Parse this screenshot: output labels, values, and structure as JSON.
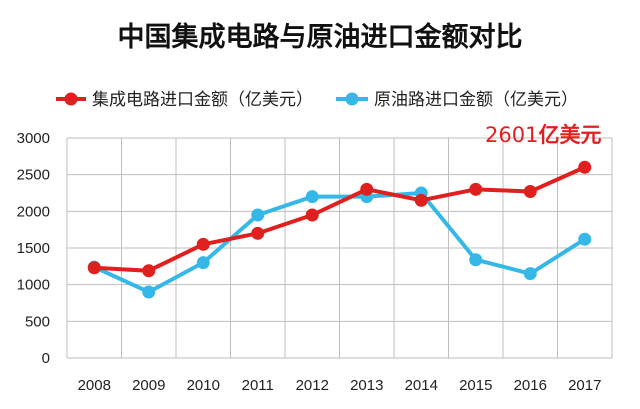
{
  "chart_data": {
    "type": "line",
    "title": "中国集成电路与原油进口金额对比",
    "categories": [
      "2008",
      "2009",
      "2010",
      "2011",
      "2012",
      "2013",
      "2014",
      "2015",
      "2016",
      "2017"
    ],
    "series": [
      {
        "name": "集成电路进口金额（亿美元）",
        "color": "#e0201e",
        "values": [
          1230,
          1190,
          1550,
          1700,
          1950,
          2300,
          2150,
          2300,
          2270,
          2601
        ]
      },
      {
        "name": "原油路进口金额（亿美元）",
        "color": "#35b8e8",
        "values": [
          1240,
          900,
          1300,
          1950,
          2200,
          2200,
          2250,
          1340,
          1150,
          1620
        ]
      }
    ],
    "ylim": [
      0,
      3000
    ],
    "yticks": [
      0,
      500,
      1000,
      1500,
      2000,
      2500,
      3000
    ],
    "xlabel": "",
    "ylabel": "",
    "grid": true,
    "legend_position": "top",
    "annotation": {
      "number": "2601",
      "unit": "亿美元",
      "color": "#e0201e"
    }
  }
}
